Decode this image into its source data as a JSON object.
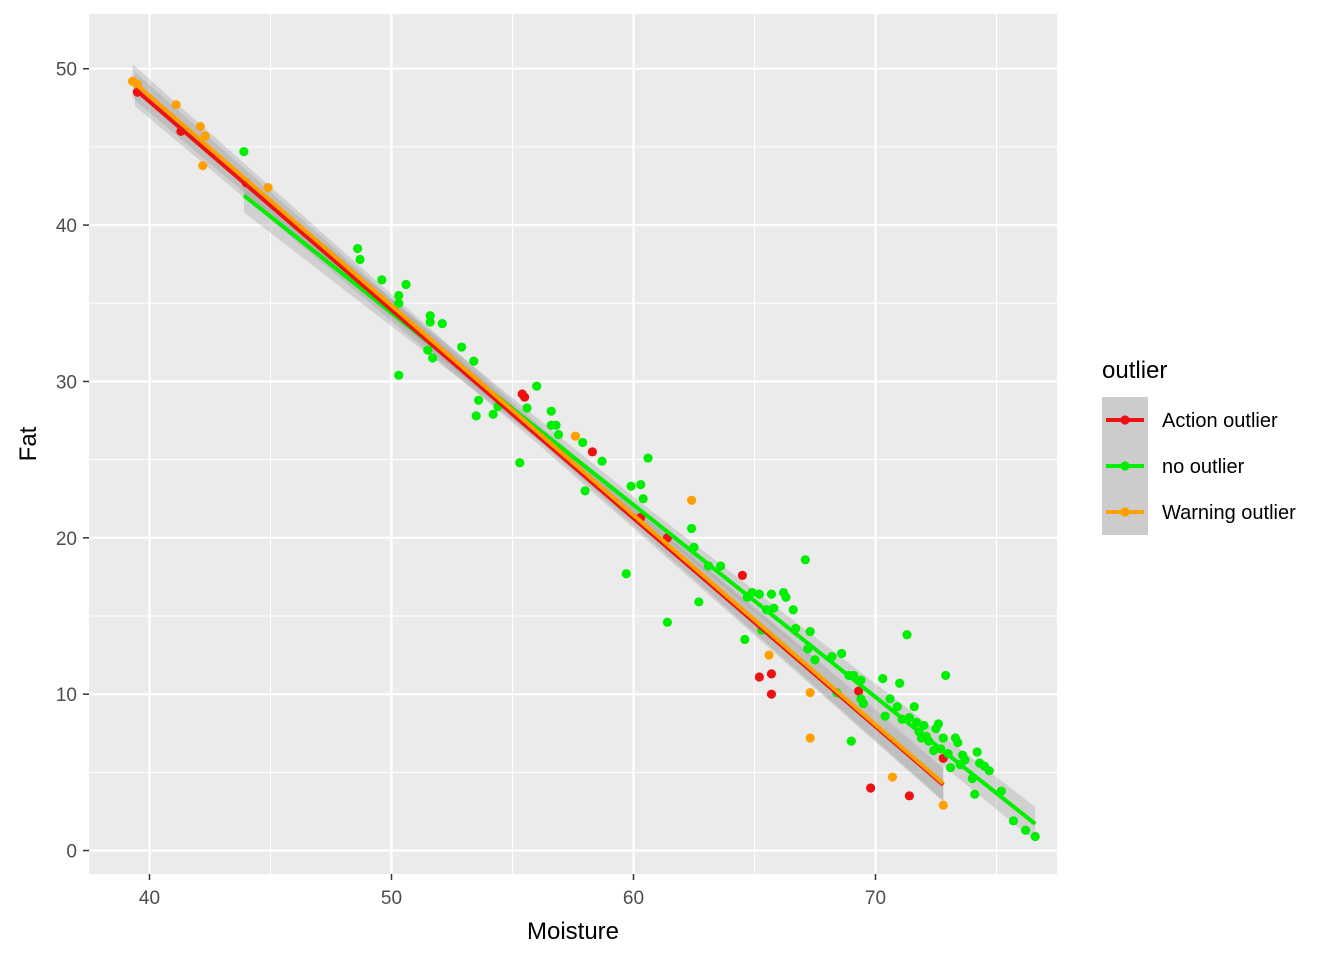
{
  "chart_data": {
    "type": "scatter",
    "title": "",
    "xlabel": "Moisture",
    "ylabel": "Fat",
    "xlim": [
      37.5,
      77.5
    ],
    "ylim": [
      -1.5,
      53.5
    ],
    "x_ticks": [
      40,
      50,
      60,
      70
    ],
    "y_ticks": [
      0,
      10,
      20,
      30,
      40,
      50
    ],
    "x_tick_labels": [
      "40",
      "50",
      "60",
      "70"
    ],
    "y_tick_labels": [
      "0",
      "10",
      "20",
      "30",
      "40",
      "50"
    ],
    "grid": true,
    "legend": {
      "title": "outlier",
      "placement": "right",
      "entries": [
        "Action outlier",
        "no outlier",
        "Warning outlier"
      ]
    },
    "series": [
      {
        "name": "Action outlier",
        "color": "#ee1111",
        "points": [
          [
            39.5,
            48.5
          ],
          [
            41.3,
            46.0
          ],
          [
            44.0,
            42.7
          ],
          [
            55.4,
            29.2
          ],
          [
            55.5,
            29.0
          ],
          [
            58.3,
            25.5
          ],
          [
            60.3,
            21.3
          ],
          [
            61.4,
            20.0
          ],
          [
            64.5,
            17.6
          ],
          [
            65.2,
            11.1
          ],
          [
            65.7,
            11.3
          ],
          [
            65.7,
            10.0
          ],
          [
            69.3,
            10.2
          ],
          [
            69.8,
            4.0
          ],
          [
            71.4,
            3.5
          ],
          [
            72.8,
            5.9
          ]
        ],
        "fit": {
          "x": [
            39.4,
            72.8
          ],
          "y": [
            48.7,
            4.2
          ]
        }
      },
      {
        "name": "no outlier",
        "color": "#00ee00",
        "points": [
          [
            43.9,
            44.7
          ],
          [
            48.6,
            38.5
          ],
          [
            48.7,
            37.8
          ],
          [
            49.6,
            36.5
          ],
          [
            50.3,
            35.5
          ],
          [
            50.3,
            35.0
          ],
          [
            50.6,
            36.2
          ],
          [
            50.3,
            30.4
          ],
          [
            51.6,
            34.2
          ],
          [
            51.6,
            33.8
          ],
          [
            51.5,
            32.0
          ],
          [
            51.7,
            31.5
          ],
          [
            52.1,
            33.7
          ],
          [
            52.9,
            32.2
          ],
          [
            53.4,
            31.3
          ],
          [
            53.5,
            27.8
          ],
          [
            53.6,
            28.8
          ],
          [
            54.2,
            27.9
          ],
          [
            54.4,
            28.4
          ],
          [
            55.3,
            24.8
          ],
          [
            55.6,
            28.3
          ],
          [
            56.0,
            29.7
          ],
          [
            56.6,
            28.1
          ],
          [
            56.6,
            27.2
          ],
          [
            56.8,
            27.2
          ],
          [
            56.9,
            26.6
          ],
          [
            57.9,
            26.1
          ],
          [
            58.0,
            23.0
          ],
          [
            58.7,
            24.9
          ],
          [
            59.7,
            17.7
          ],
          [
            59.9,
            23.3
          ],
          [
            60.3,
            23.4
          ],
          [
            60.4,
            22.5
          ],
          [
            60.6,
            25.1
          ],
          [
            61.4,
            14.6
          ],
          [
            62.4,
            20.6
          ],
          [
            62.5,
            19.4
          ],
          [
            62.7,
            15.9
          ],
          [
            63.1,
            18.2
          ],
          [
            63.6,
            18.2
          ],
          [
            64.6,
            13.5
          ],
          [
            64.7,
            16.2
          ],
          [
            64.9,
            16.5
          ],
          [
            65.2,
            16.4
          ],
          [
            65.3,
            14.1
          ],
          [
            65.5,
            15.4
          ],
          [
            65.7,
            16.4
          ],
          [
            65.8,
            15.5
          ],
          [
            66.2,
            16.5
          ],
          [
            66.3,
            16.2
          ],
          [
            66.6,
            15.4
          ],
          [
            66.7,
            14.2
          ],
          [
            67.1,
            18.6
          ],
          [
            67.2,
            12.9
          ],
          [
            67.3,
            14.0
          ],
          [
            67.5,
            12.2
          ],
          [
            68.2,
            12.4
          ],
          [
            68.4,
            10.1
          ],
          [
            68.6,
            12.6
          ],
          [
            68.9,
            11.2
          ],
          [
            69.1,
            11.2
          ],
          [
            69.0,
            7.0
          ],
          [
            69.4,
            10.9
          ],
          [
            69.4,
            9.7
          ],
          [
            69.5,
            9.4
          ],
          [
            70.3,
            11.0
          ],
          [
            70.4,
            8.6
          ],
          [
            70.6,
            9.7
          ],
          [
            70.9,
            9.2
          ],
          [
            71.0,
            10.7
          ],
          [
            71.1,
            8.4
          ],
          [
            71.3,
            13.8
          ],
          [
            71.4,
            8.5
          ],
          [
            71.6,
            9.2
          ],
          [
            71.7,
            8.2
          ],
          [
            71.8,
            7.6
          ],
          [
            71.9,
            7.2
          ],
          [
            72.0,
            8.0
          ],
          [
            72.1,
            7.3
          ],
          [
            72.2,
            7.0
          ],
          [
            72.4,
            6.4
          ],
          [
            72.5,
            7.8
          ],
          [
            72.6,
            8.1
          ],
          [
            72.7,
            6.5
          ],
          [
            72.8,
            7.2
          ],
          [
            72.9,
            11.2
          ],
          [
            73.0,
            6.2
          ],
          [
            73.1,
            5.3
          ],
          [
            73.3,
            7.2
          ],
          [
            73.4,
            6.9
          ],
          [
            73.5,
            5.5
          ],
          [
            73.6,
            6.1
          ],
          [
            73.7,
            5.8
          ],
          [
            74.0,
            4.6
          ],
          [
            74.1,
            3.6
          ],
          [
            74.2,
            6.3
          ],
          [
            74.3,
            5.6
          ],
          [
            74.5,
            5.4
          ],
          [
            74.7,
            5.1
          ],
          [
            75.2,
            3.8
          ],
          [
            75.7,
            1.9
          ],
          [
            76.2,
            1.3
          ],
          [
            76.6,
            0.9
          ]
        ],
        "fit": {
          "x": [
            43.9,
            76.6
          ],
          "y": [
            41.9,
            1.7
          ]
        }
      },
      {
        "name": "Warning outlier",
        "color": "#ff9f00",
        "points": [
          [
            39.3,
            49.2
          ],
          [
            39.5,
            49.0
          ],
          [
            41.1,
            47.7
          ],
          [
            42.1,
            46.3
          ],
          [
            42.3,
            45.7
          ],
          [
            42.2,
            43.8
          ],
          [
            44.9,
            42.4
          ],
          [
            57.6,
            26.5
          ],
          [
            62.4,
            22.4
          ],
          [
            65.6,
            12.5
          ],
          [
            67.3,
            10.1
          ],
          [
            67.3,
            7.2
          ],
          [
            70.7,
            4.7
          ],
          [
            72.8,
            2.9
          ]
        ],
        "fit": {
          "x": [
            39.3,
            72.8
          ],
          "y": [
            49.2,
            4.3
          ]
        }
      }
    ]
  }
}
